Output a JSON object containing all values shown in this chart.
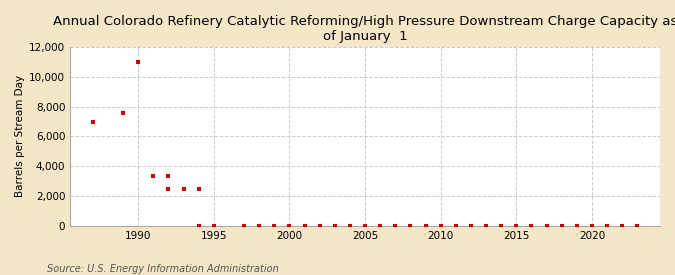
{
  "title": "Annual Colorado Refinery Catalytic Reforming/High Pressure Downstream Charge Capacity as\nof January  1",
  "ylabel": "Barrels per Stream Day",
  "source": "Source: U.S. Energy Information Administration",
  "background_color": "#f5e6c8",
  "plot_background_color": "#ffffff",
  "marker_color": "#cc0000",
  "grid_color": "#cccccc",
  "data": [
    [
      1987,
      7000
    ],
    [
      1989,
      7600
    ],
    [
      1990,
      11000
    ],
    [
      1991,
      3350
    ],
    [
      1992,
      3350
    ],
    [
      1992,
      2450
    ],
    [
      1993,
      2500
    ],
    [
      1994,
      2500
    ],
    [
      1994,
      0
    ],
    [
      1995,
      0
    ],
    [
      1997,
      0
    ],
    [
      1998,
      0
    ],
    [
      1999,
      0
    ],
    [
      2000,
      0
    ],
    [
      2001,
      0
    ],
    [
      2002,
      0
    ],
    [
      2003,
      0
    ],
    [
      2004,
      0
    ],
    [
      2005,
      0
    ],
    [
      2006,
      0
    ],
    [
      2007,
      0
    ],
    [
      2008,
      0
    ],
    [
      2009,
      0
    ],
    [
      2010,
      0
    ],
    [
      2011,
      0
    ],
    [
      2012,
      0
    ],
    [
      2013,
      0
    ],
    [
      2014,
      0
    ],
    [
      2015,
      0
    ],
    [
      2016,
      0
    ],
    [
      2017,
      0
    ],
    [
      2018,
      0
    ],
    [
      2019,
      0
    ],
    [
      2020,
      0
    ],
    [
      2021,
      0
    ],
    [
      2022,
      0
    ],
    [
      2023,
      0
    ]
  ],
  "xlim": [
    1985.5,
    2024.5
  ],
  "ylim": [
    0,
    12000
  ],
  "xticks": [
    1990,
    1995,
    2000,
    2005,
    2010,
    2015,
    2020
  ],
  "yticks": [
    0,
    2000,
    4000,
    6000,
    8000,
    10000,
    12000
  ],
  "title_fontsize": 9.5,
  "ylabel_fontsize": 7.5,
  "tick_fontsize": 7.5,
  "source_fontsize": 7.0
}
